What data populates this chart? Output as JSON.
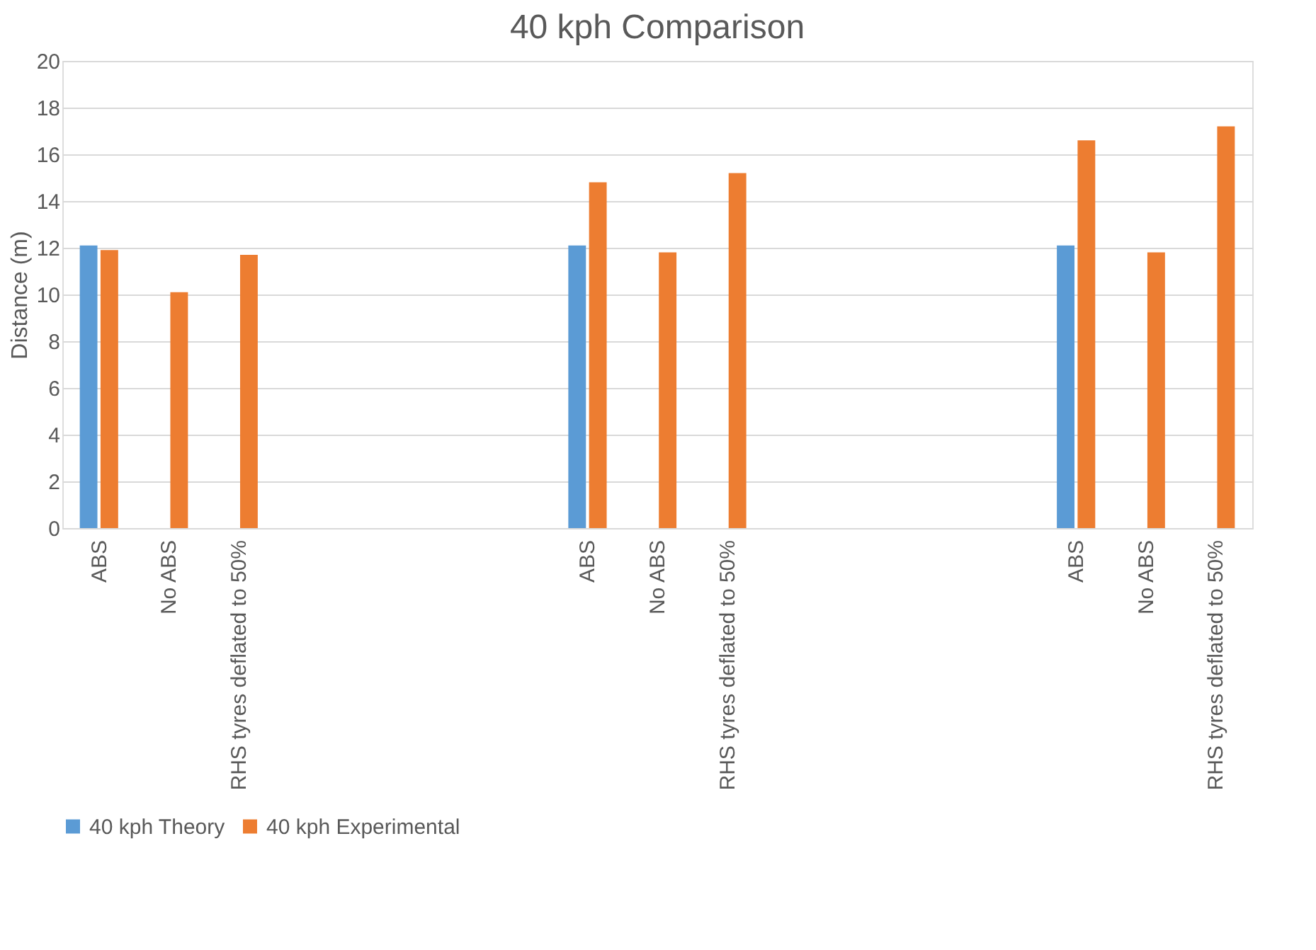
{
  "chart_data": {
    "type": "bar",
    "title": "40 kph Comparison",
    "ylabel": "Distance (m)",
    "categories": [
      "ABS",
      "No ABS",
      "RHS tyres deflated to 50%",
      null,
      null,
      null,
      null,
      "ABS",
      "No ABS",
      "RHS tyres deflated to 50%",
      null,
      null,
      null,
      null,
      "ABS",
      "No ABS",
      "RHS tyres deflated to 50%"
    ],
    "series": [
      {
        "name": "40 kph Theory",
        "color": "#5b9bd5",
        "values": [
          12.1,
          null,
          null,
          null,
          null,
          null,
          null,
          12.1,
          null,
          null,
          null,
          null,
          null,
          null,
          12.1,
          null,
          null
        ]
      },
      {
        "name": "40 kph Experimental",
        "color": "#ed7d31",
        "values": [
          11.9,
          10.1,
          11.7,
          null,
          null,
          null,
          null,
          14.8,
          11.8,
          15.2,
          null,
          null,
          null,
          null,
          16.6,
          11.8,
          17.2
        ]
      }
    ],
    "ylim": [
      0,
      20
    ],
    "yticks": [
      0,
      2,
      4,
      6,
      8,
      10,
      12,
      14,
      16,
      18,
      20
    ],
    "grid": "y",
    "legend": "bottom"
  }
}
